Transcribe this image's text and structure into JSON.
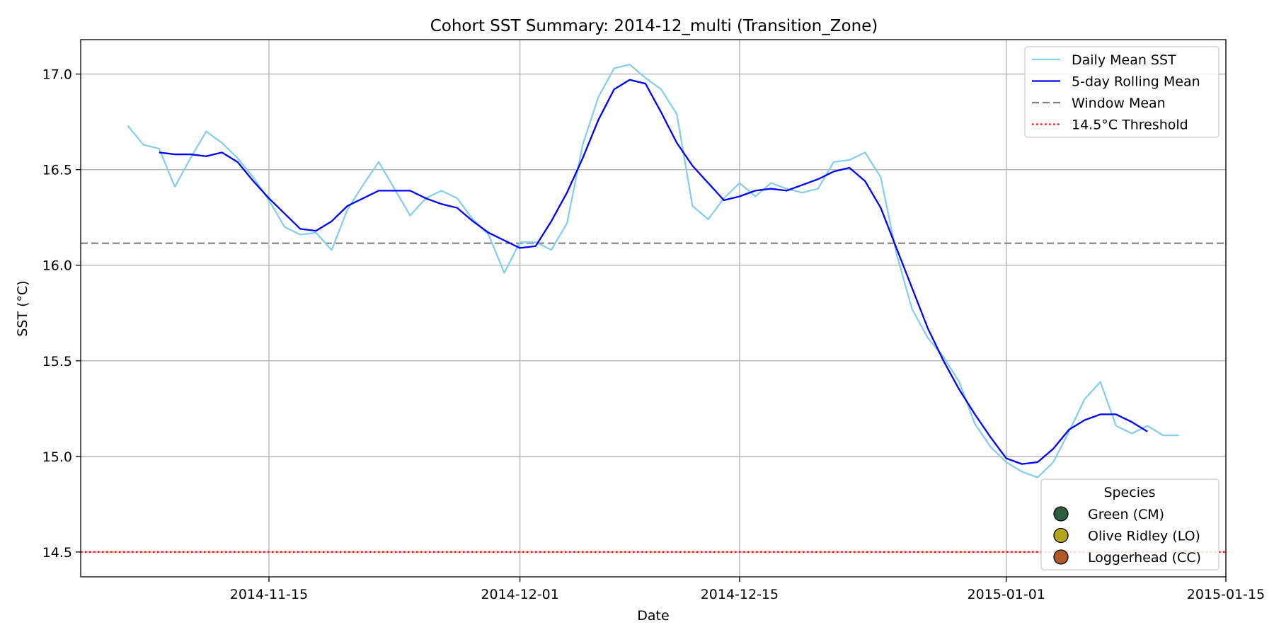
{
  "chart_data": {
    "type": "line",
    "title": "Cohort SST Summary: 2014-12_multi (Transition_Zone)",
    "xlabel": "Date",
    "ylabel": "SST (°C)",
    "xlim": [
      "2014-11-03",
      "2015-01-15"
    ],
    "ylim": [
      14.37,
      17.18
    ],
    "grid": true,
    "x_ticks": [
      "2014-11-15",
      "2014-12-01",
      "2014-12-15",
      "2015-01-01",
      "2015-01-15"
    ],
    "y_ticks": [
      "14.5",
      "15.0",
      "15.5",
      "16.0",
      "16.5",
      "17.0"
    ],
    "x_start": "2014-11-06",
    "series": [
      {
        "name": "Daily Mean SST",
        "color": "#87ceeb",
        "style": "solid",
        "values": [
          16.73,
          16.63,
          16.61,
          16.41,
          16.56,
          16.7,
          16.64,
          16.56,
          16.46,
          16.34,
          16.2,
          16.16,
          16.17,
          16.08,
          16.29,
          16.42,
          16.54,
          16.4,
          16.26,
          16.35,
          16.39,
          16.35,
          16.24,
          16.16,
          15.96,
          16.12,
          16.12,
          16.08,
          16.22,
          16.63,
          16.88,
          17.03,
          17.05,
          16.98,
          16.92,
          16.79,
          16.31,
          16.24,
          16.35,
          16.43,
          16.36,
          16.43,
          16.4,
          16.38,
          16.4,
          16.54,
          16.55,
          16.59,
          16.46,
          16.06,
          15.77,
          15.62,
          15.52,
          15.39,
          15.17,
          15.05,
          14.97,
          14.92,
          14.89,
          14.97,
          15.13,
          15.3,
          15.39,
          15.16,
          15.12,
          15.16,
          15.11,
          15.11
        ]
      },
      {
        "name": "5-day Rolling Mean",
        "color": "#0000ff",
        "style": "solid",
        "offset": 2,
        "values": [
          16.59,
          16.58,
          16.58,
          16.57,
          16.59,
          16.54,
          16.44,
          16.35,
          16.27,
          16.19,
          16.18,
          16.23,
          16.31,
          16.35,
          16.39,
          16.39,
          16.39,
          16.35,
          16.32,
          16.3,
          16.23,
          16.17,
          16.13,
          16.09,
          16.1,
          16.23,
          16.38,
          16.56,
          16.76,
          16.92,
          16.97,
          16.95,
          16.8,
          16.64,
          16.52,
          16.43,
          16.34,
          16.36,
          16.39,
          16.4,
          16.39,
          16.42,
          16.45,
          16.49,
          16.51,
          16.44,
          16.3,
          16.09,
          15.88,
          15.67,
          15.5,
          15.35,
          15.22,
          15.1,
          14.99,
          14.96,
          14.97,
          15.04,
          15.14,
          15.19,
          15.22,
          15.22,
          15.18,
          15.13
        ]
      },
      {
        "name": "Window Mean",
        "color": "#808080",
        "style": "dashed",
        "value": 16.115
      },
      {
        "name": "14.5°C Threshold",
        "color": "#ff0000",
        "style": "dotted",
        "value": 14.5
      }
    ],
    "legend": {
      "placement": "top-right",
      "entries": [
        "Daily Mean SST",
        "5-day Rolling Mean",
        "Window Mean",
        "14.5°C Threshold"
      ]
    },
    "species_legend": {
      "placement": "bottom-right",
      "title": "Species",
      "entries": [
        {
          "label": "Green (CM)",
          "color": "#2e5e3e"
        },
        {
          "label": "Olive Ridley (LO)",
          "color": "#b5a51a"
        },
        {
          "label": "Loggerhead (CC)",
          "color": "#b05a2c"
        }
      ]
    }
  }
}
